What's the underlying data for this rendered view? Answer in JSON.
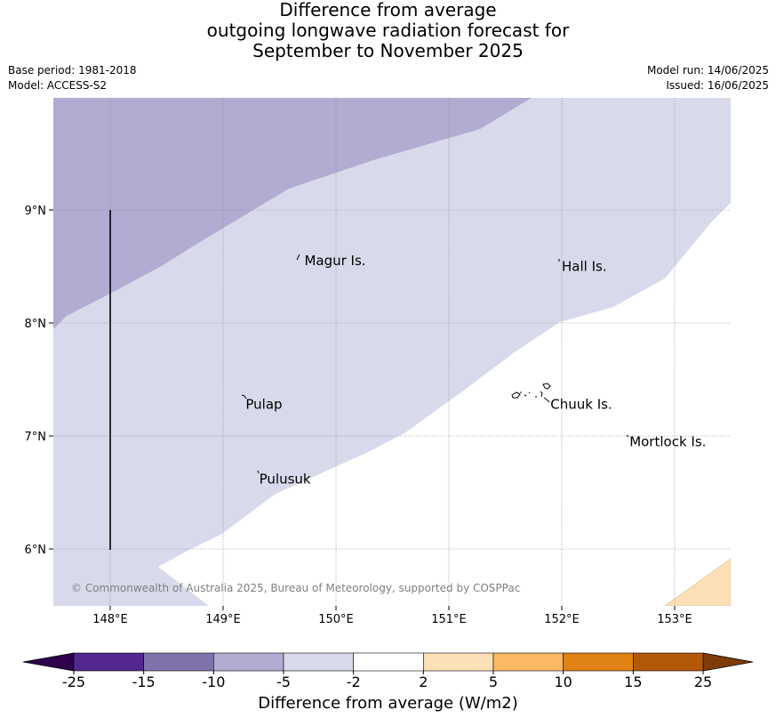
{
  "title_lines": [
    "Difference from average",
    "outgoing longwave radiation forecast for",
    "September to November 2025"
  ],
  "meta": {
    "base_period": "Base period: 1981-2018",
    "model": "Model: ACCESS-S2",
    "model_run": "Model run: 14/06/2025",
    "issued": "Issued: 16/06/2025"
  },
  "map": {
    "lon_range": [
      147.5,
      153.5
    ],
    "lat_range": [
      5.5,
      9.98
    ],
    "lon_ticks": [
      {
        "value": 148,
        "label": "148°E"
      },
      {
        "value": 149,
        "label": "149°E"
      },
      {
        "value": 150,
        "label": "150°E"
      },
      {
        "value": 151,
        "label": "151°E"
      },
      {
        "value": 152,
        "label": "152°E"
      },
      {
        "value": 153,
        "label": "153°E"
      }
    ],
    "lat_ticks": [
      {
        "value": 9,
        "label": "9°N"
      },
      {
        "value": 8,
        "label": "8°N"
      },
      {
        "value": 7,
        "label": "7°N"
      },
      {
        "value": 6,
        "label": "6°N"
      }
    ],
    "places": [
      {
        "name": "Magur Is.",
        "lon": 149.72,
        "lat": 8.55
      },
      {
        "name": "Hall Is.",
        "lon": 152.0,
        "lat": 8.5
      },
      {
        "name": "Pulap",
        "lon": 149.2,
        "lat": 7.28
      },
      {
        "name": "Chuuk Is.",
        "lon": 151.9,
        "lat": 7.28
      },
      {
        "name": "Mortlock Is.",
        "lon": 152.6,
        "lat": 6.95
      },
      {
        "name": "Pulusuk",
        "lon": 149.32,
        "lat": 6.62
      }
    ],
    "copyright": "© Commonwealth of Australia 2025, Bureau of Meteorology, supported by COSPPac"
  },
  "colorbar": {
    "title": "Difference from average (W/m2)",
    "labels": [
      "-25",
      "-15",
      "-10",
      "-5",
      "-2",
      "2",
      "5",
      "10",
      "15",
      "25"
    ],
    "colors": [
      "#54278f",
      "#8073ac",
      "#b2abd2",
      "#d8daeb",
      "#ffffff",
      "#fee0b6",
      "#fdb863",
      "#e08214",
      "#b35806"
    ],
    "extend_low": "#2d004b",
    "extend_high": "#7f3b08"
  }
}
